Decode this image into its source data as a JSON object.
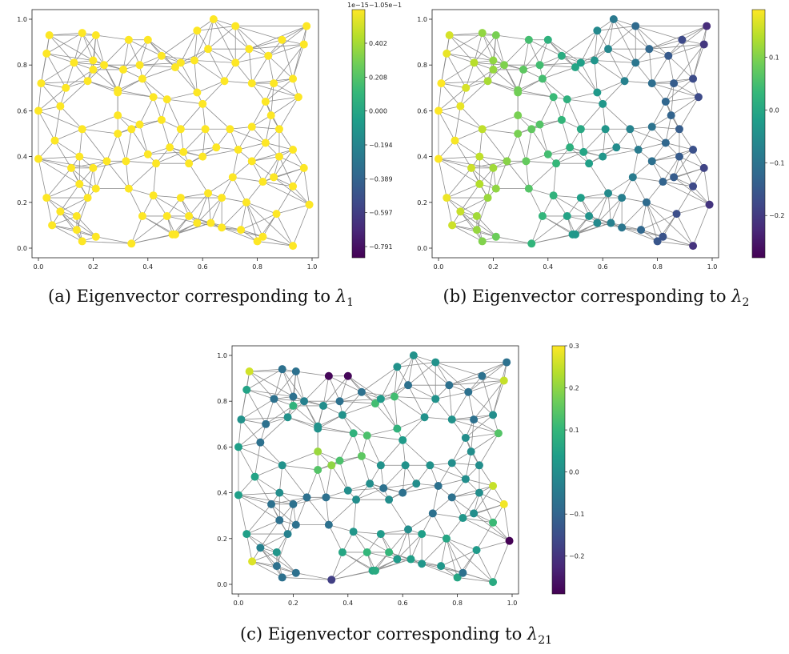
{
  "chart_data": [
    {
      "type": "scatter",
      "caption": {
        "prefix": "(a) Eigenvector corresponding to",
        "symbol": "λ",
        "subscript": "1"
      },
      "xlim": [
        0,
        1
      ],
      "ylim": [
        0,
        1
      ],
      "xticks": [
        "0.0",
        "0.2",
        "0.4",
        "0.6",
        "0.8",
        "1.0"
      ],
      "yticks": [
        "0.0",
        "0.2",
        "0.4",
        "0.6",
        "0.8",
        "1.0"
      ],
      "colorbar": {
        "ticks": [
          "0.402",
          "0.208",
          "0.000",
          "−0.194",
          "−0.389",
          "−0.597",
          "−0.791"
        ],
        "offset_text": "1e−15−1.05e−1",
        "min": -0.9,
        "max": 0.55
      },
      "uniform_value": 0.55
    },
    {
      "type": "scatter",
      "caption": {
        "prefix": "(b) Eigenvector corresponding to",
        "symbol": "λ",
        "subscript": "2"
      },
      "xlim": [
        0,
        1
      ],
      "ylim": [
        0,
        1
      ],
      "xticks": [
        "0.0",
        "0.2",
        "0.4",
        "0.6",
        "0.8",
        "1.0"
      ],
      "yticks": [
        "0.0",
        "0.2",
        "0.4",
        "0.6",
        "0.8",
        "1.0"
      ],
      "colorbar": {
        "ticks": [
          "0.1",
          "0.0",
          "−0.1",
          "−0.2"
        ],
        "tick_values": [
          0.1,
          0.0,
          -0.1,
          -0.2
        ],
        "min": -0.28,
        "max": 0.19
      },
      "value_model": "smooth left-to-right gradient (green on the left, blue/purple on the right)"
    },
    {
      "type": "scatter",
      "caption": {
        "prefix": "(c) Eigenvector corresponding to",
        "symbol": "λ",
        "subscript": "21"
      },
      "xlim": [
        0,
        1
      ],
      "ylim": [
        0,
        1
      ],
      "xticks": [
        "0.0",
        "0.2",
        "0.4",
        "0.6",
        "0.8",
        "1.0"
      ],
      "yticks": [
        "0.0",
        "0.2",
        "0.4",
        "0.6",
        "0.8",
        "1.0"
      ],
      "colorbar": {
        "ticks": [
          "0.3",
          "0.2",
          "0.1",
          "0.0",
          "−0.1",
          "−0.2"
        ],
        "tick_values": [
          0.3,
          0.2,
          0.1,
          0.0,
          -0.1,
          -0.2
        ],
        "min": -0.29,
        "max": 0.3
      },
      "value_model": "oscillating high-frequency pattern"
    }
  ],
  "graph": {
    "nodes": [
      [
        0.04,
        0.93
      ],
      [
        0.16,
        0.94
      ],
      [
        0.21,
        0.93
      ],
      [
        0.33,
        0.91
      ],
      [
        0.4,
        0.91
      ],
      [
        0.58,
        0.95
      ],
      [
        0.64,
        1.0
      ],
      [
        0.72,
        0.97
      ],
      [
        0.84,
        0.84
      ],
      [
        0.89,
        0.91
      ],
      [
        0.98,
        0.97
      ],
      [
        0.97,
        0.89
      ],
      [
        0.03,
        0.85
      ],
      [
        0.13,
        0.81
      ],
      [
        0.2,
        0.82
      ],
      [
        0.24,
        0.8
      ],
      [
        0.2,
        0.78
      ],
      [
        0.31,
        0.78
      ],
      [
        0.37,
        0.8
      ],
      [
        0.38,
        0.74
      ],
      [
        0.45,
        0.84
      ],
      [
        0.5,
        0.79
      ],
      [
        0.52,
        0.81
      ],
      [
        0.57,
        0.82
      ],
      [
        0.62,
        0.87
      ],
      [
        0.72,
        0.81
      ],
      [
        0.77,
        0.87
      ],
      [
        0.86,
        0.72
      ],
      [
        0.93,
        0.74
      ],
      [
        0.01,
        0.72
      ],
      [
        0.1,
        0.7
      ],
      [
        0.08,
        0.62
      ],
      [
        0.18,
        0.73
      ],
      [
        0.29,
        0.69
      ],
      [
        0.29,
        0.68
      ],
      [
        0.42,
        0.66
      ],
      [
        0.47,
        0.65
      ],
      [
        0.58,
        0.68
      ],
      [
        0.6,
        0.63
      ],
      [
        0.68,
        0.73
      ],
      [
        0.78,
        0.72
      ],
      [
        0.83,
        0.64
      ],
      [
        0.95,
        0.66
      ],
      [
        0.0,
        0.6
      ],
      [
        0.06,
        0.47
      ],
      [
        0.16,
        0.52
      ],
      [
        0.29,
        0.58
      ],
      [
        0.34,
        0.52
      ],
      [
        0.37,
        0.54
      ],
      [
        0.45,
        0.56
      ],
      [
        0.52,
        0.52
      ],
      [
        0.61,
        0.52
      ],
      [
        0.7,
        0.52
      ],
      [
        0.78,
        0.53
      ],
      [
        0.85,
        0.58
      ],
      [
        0.88,
        0.52
      ],
      [
        0.0,
        0.39
      ],
      [
        0.12,
        0.35
      ],
      [
        0.15,
        0.4
      ],
      [
        0.2,
        0.35
      ],
      [
        0.25,
        0.38
      ],
      [
        0.29,
        0.5
      ],
      [
        0.32,
        0.38
      ],
      [
        0.4,
        0.41
      ],
      [
        0.43,
        0.37
      ],
      [
        0.48,
        0.44
      ],
      [
        0.53,
        0.42
      ],
      [
        0.55,
        0.37
      ],
      [
        0.6,
        0.4
      ],
      [
        0.65,
        0.44
      ],
      [
        0.73,
        0.43
      ],
      [
        0.78,
        0.38
      ],
      [
        0.83,
        0.46
      ],
      [
        0.88,
        0.4
      ],
      [
        0.93,
        0.43
      ],
      [
        0.97,
        0.35
      ],
      [
        0.03,
        0.22
      ],
      [
        0.08,
        0.16
      ],
      [
        0.14,
        0.14
      ],
      [
        0.15,
        0.28
      ],
      [
        0.18,
        0.22
      ],
      [
        0.21,
        0.26
      ],
      [
        0.33,
        0.26
      ],
      [
        0.42,
        0.23
      ],
      [
        0.52,
        0.22
      ],
      [
        0.55,
        0.14
      ],
      [
        0.62,
        0.24
      ],
      [
        0.67,
        0.22
      ],
      [
        0.71,
        0.31
      ],
      [
        0.76,
        0.2
      ],
      [
        0.82,
        0.29
      ],
      [
        0.86,
        0.31
      ],
      [
        0.93,
        0.27
      ],
      [
        0.05,
        0.1
      ],
      [
        0.14,
        0.08
      ],
      [
        0.16,
        0.03
      ],
      [
        0.21,
        0.05
      ],
      [
        0.34,
        0.02
      ],
      [
        0.38,
        0.14
      ],
      [
        0.47,
        0.14
      ],
      [
        0.49,
        0.06
      ],
      [
        0.5,
        0.06
      ],
      [
        0.58,
        0.11
      ],
      [
        0.63,
        0.11
      ],
      [
        0.67,
        0.09
      ],
      [
        0.74,
        0.08
      ],
      [
        0.8,
        0.03
      ],
      [
        0.82,
        0.05
      ],
      [
        0.87,
        0.15
      ],
      [
        0.93,
        0.01
      ],
      [
        0.99,
        0.19
      ]
    ],
    "c_values": [
      0.26,
      -0.07,
      -0.07,
      -0.28,
      -0.28,
      0.01,
      0.01,
      0.01,
      -0.07,
      -0.07,
      -0.07,
      0.25,
      0.05,
      -0.07,
      -0.07,
      -0.03,
      0.09,
      0.0,
      -0.07,
      0.01,
      -0.07,
      0.12,
      0.03,
      0.12,
      -0.07,
      0.01,
      -0.07,
      -0.07,
      0.0,
      0.01,
      -0.07,
      -0.07,
      0.01,
      0.01,
      0.01,
      0.09,
      0.13,
      0.09,
      0.03,
      0.01,
      0.01,
      0.0,
      0.14,
      0.04,
      0.05,
      0.01,
      0.21,
      0.2,
      0.13,
      0.15,
      0.01,
      0.01,
      0.01,
      0.0,
      0.0,
      0.0,
      0.04,
      -0.07,
      0.0,
      -0.07,
      -0.07,
      0.14,
      -0.07,
      0.0,
      0.0,
      0.0,
      -0.07,
      0.0,
      -0.07,
      0.0,
      -0.07,
      -0.07,
      0.0,
      0.0,
      0.25,
      0.29,
      0.04,
      -0.03,
      0.02,
      -0.07,
      -0.03,
      -0.07,
      -0.07,
      0.02,
      0.03,
      0.1,
      0.0,
      0.04,
      -0.07,
      0.06,
      0.02,
      0.0,
      0.11,
      0.27,
      -0.07,
      -0.07,
      -0.07,
      -0.18,
      0.06,
      0.1,
      0.06,
      0.07,
      0.03,
      0.04,
      0.02,
      0.02,
      0.06,
      -0.07,
      0.03,
      0.07,
      -0.29
    ]
  }
}
